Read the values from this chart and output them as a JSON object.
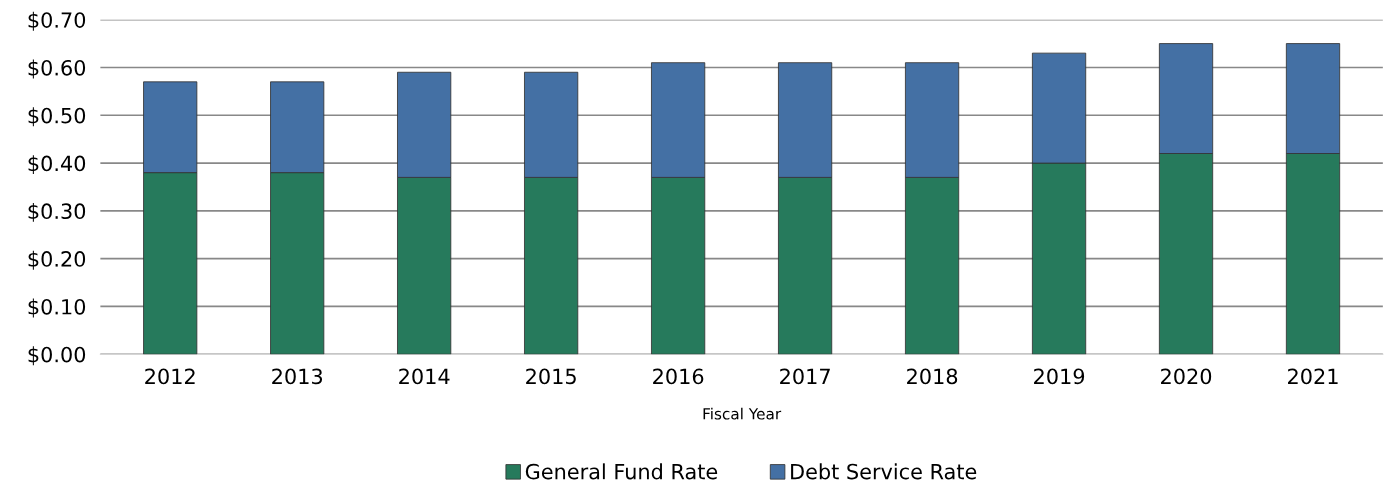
{
  "chart_data": {
    "type": "bar",
    "stacked": true,
    "xlabel": "Fiscal Year",
    "categories": [
      "2012",
      "2013",
      "2014",
      "2015",
      "2016",
      "2017",
      "2018",
      "2019",
      "2020",
      "2021"
    ],
    "series": [
      {
        "name": "General Fund Rate",
        "color": "#267a5c",
        "values": [
          0.38,
          0.38,
          0.37,
          0.37,
          0.37,
          0.37,
          0.37,
          0.4,
          0.42,
          0.42
        ]
      },
      {
        "name": "Debt Service Rate",
        "color": "#4470a4",
        "values": [
          0.19,
          0.19,
          0.22,
          0.22,
          0.24,
          0.24,
          0.24,
          0.23,
          0.23,
          0.23
        ]
      }
    ],
    "ylim": [
      0,
      0.7
    ],
    "yticks": [
      {
        "value": 0,
        "label": "$0.00"
      },
      {
        "value": 0.1,
        "label": "$0.10"
      },
      {
        "value": 0.2,
        "label": "$0.20"
      },
      {
        "value": 0.3,
        "label": "$0.30"
      },
      {
        "value": 0.4,
        "label": "$0.40"
      },
      {
        "value": 0.5,
        "label": "$0.50"
      },
      {
        "value": 0.6,
        "label": "$0.60"
      },
      {
        "value": 0.7,
        "label": "$0.70"
      }
    ],
    "grid": "y",
    "legend": "bottom"
  }
}
